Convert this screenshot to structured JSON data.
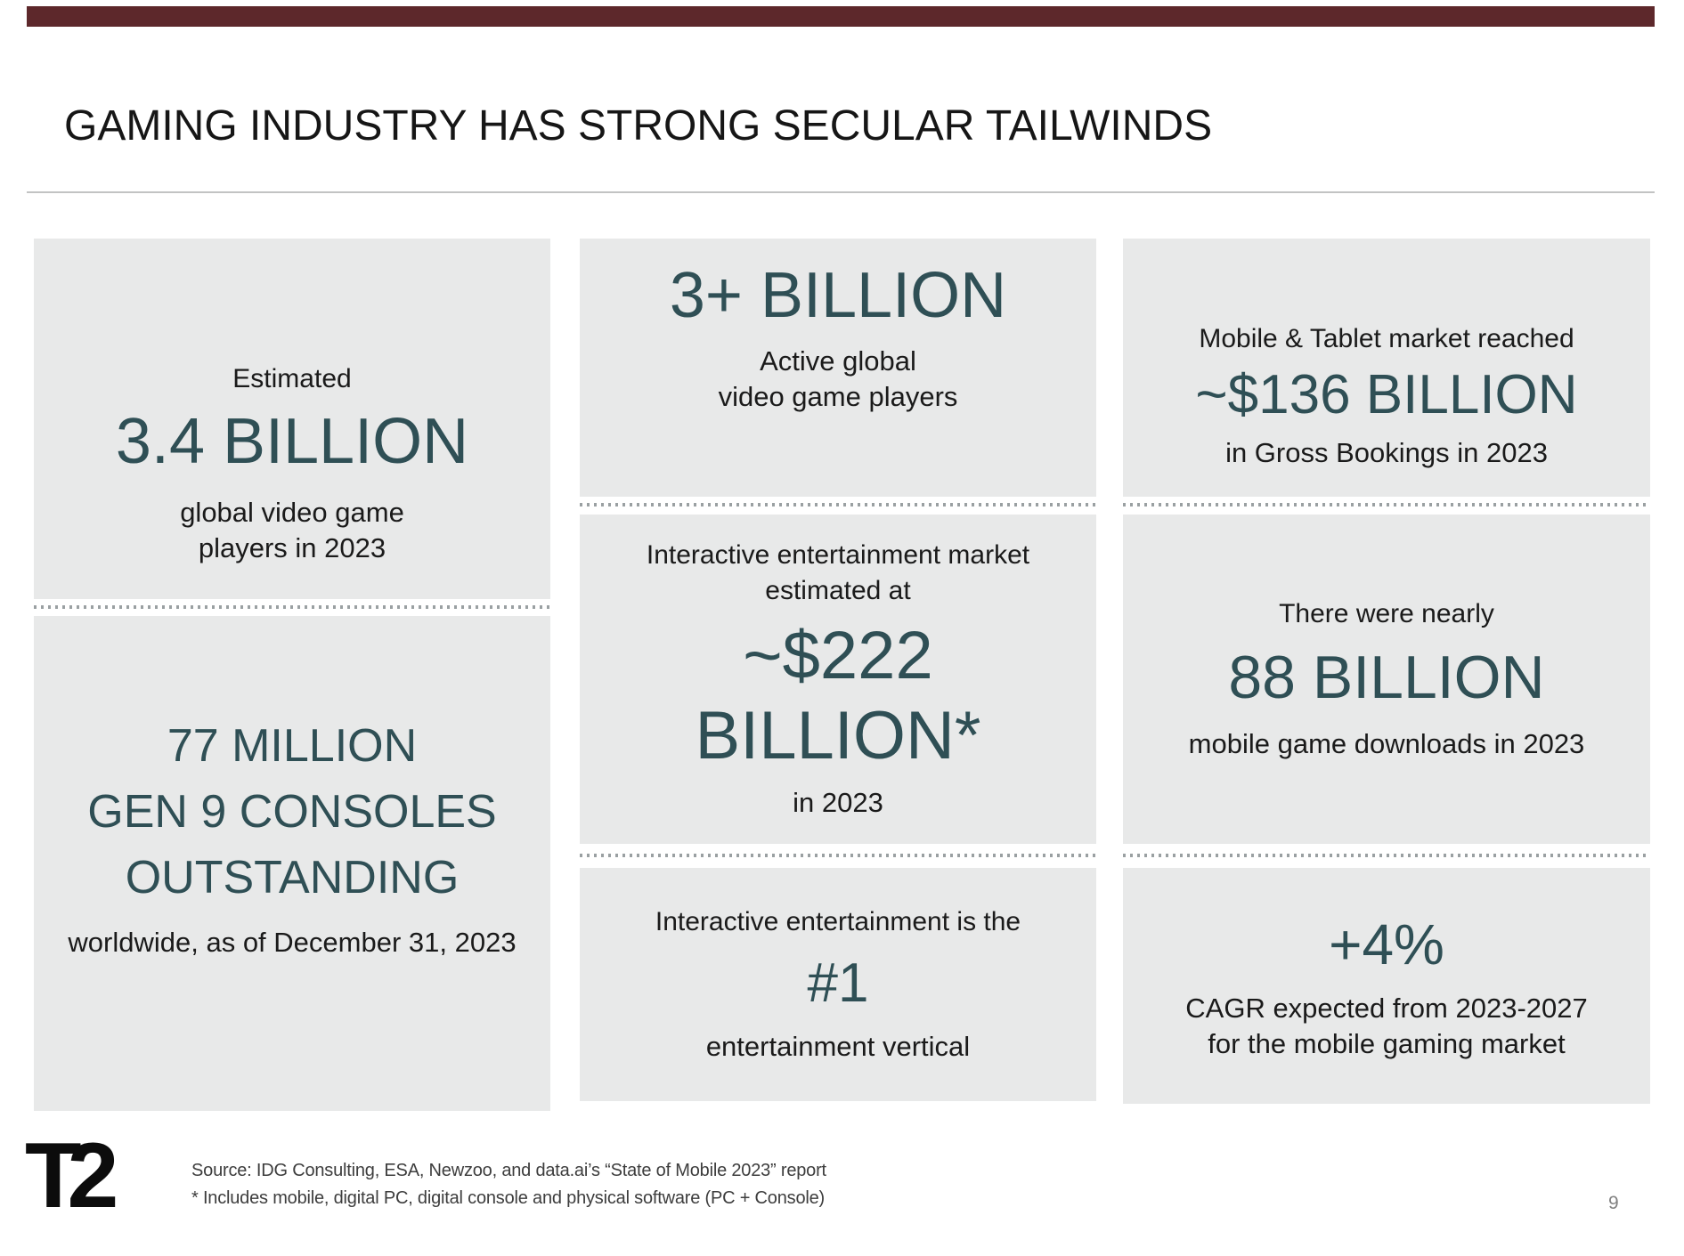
{
  "slide": {
    "title": "GAMING INDUSTRY HAS STRONG SECULAR TAILWINDS",
    "accent_bar_color": "#5d282b",
    "stat_color": "#2f4f55",
    "box_background": "#e8e9e9"
  },
  "boxes": {
    "left_top": {
      "kicker": "Estimated",
      "stat": "3.4 BILLION",
      "caption_line1": "global video game",
      "caption_line2": "players in 2023"
    },
    "left_bottom": {
      "stat_line1": "77 MILLION",
      "stat_line2": "GEN 9 CONSOLES",
      "stat_line3": "OUTSTANDING",
      "caption": "worldwide, as of December 31, 2023"
    },
    "middle_top": {
      "stat": "3+ BILLION",
      "caption_line1": "Active global",
      "caption_line2": "video game players"
    },
    "middle_middle": {
      "kicker_line1": "Interactive entertainment market",
      "kicker_line2": "estimated at",
      "stat_line1": "~$222",
      "stat_line2": "BILLION*",
      "caption": "in 2023"
    },
    "middle_bottom": {
      "kicker": "Interactive entertainment is the",
      "stat": "#1",
      "caption": "entertainment vertical"
    },
    "right_top": {
      "kicker": "Mobile & Tablet market reached",
      "stat": "~$136 BILLION",
      "caption": "in Gross Bookings in 2023"
    },
    "right_middle": {
      "kicker": "There were nearly",
      "stat": "88 BILLION",
      "caption": "mobile game downloads in 2023"
    },
    "right_bottom": {
      "stat": "+4%",
      "caption_line1": "CAGR expected from 2023-2027",
      "caption_line2": "for the mobile gaming market"
    }
  },
  "footer": {
    "logo_text": "T2",
    "source_line1": "Source:  IDG Consulting, ESA, Newzoo, and data.ai’s “State of Mobile 2023” report",
    "source_line2": "*  Includes mobile, digital PC, digital console and physical software (PC + Console)",
    "page_number": "9"
  }
}
